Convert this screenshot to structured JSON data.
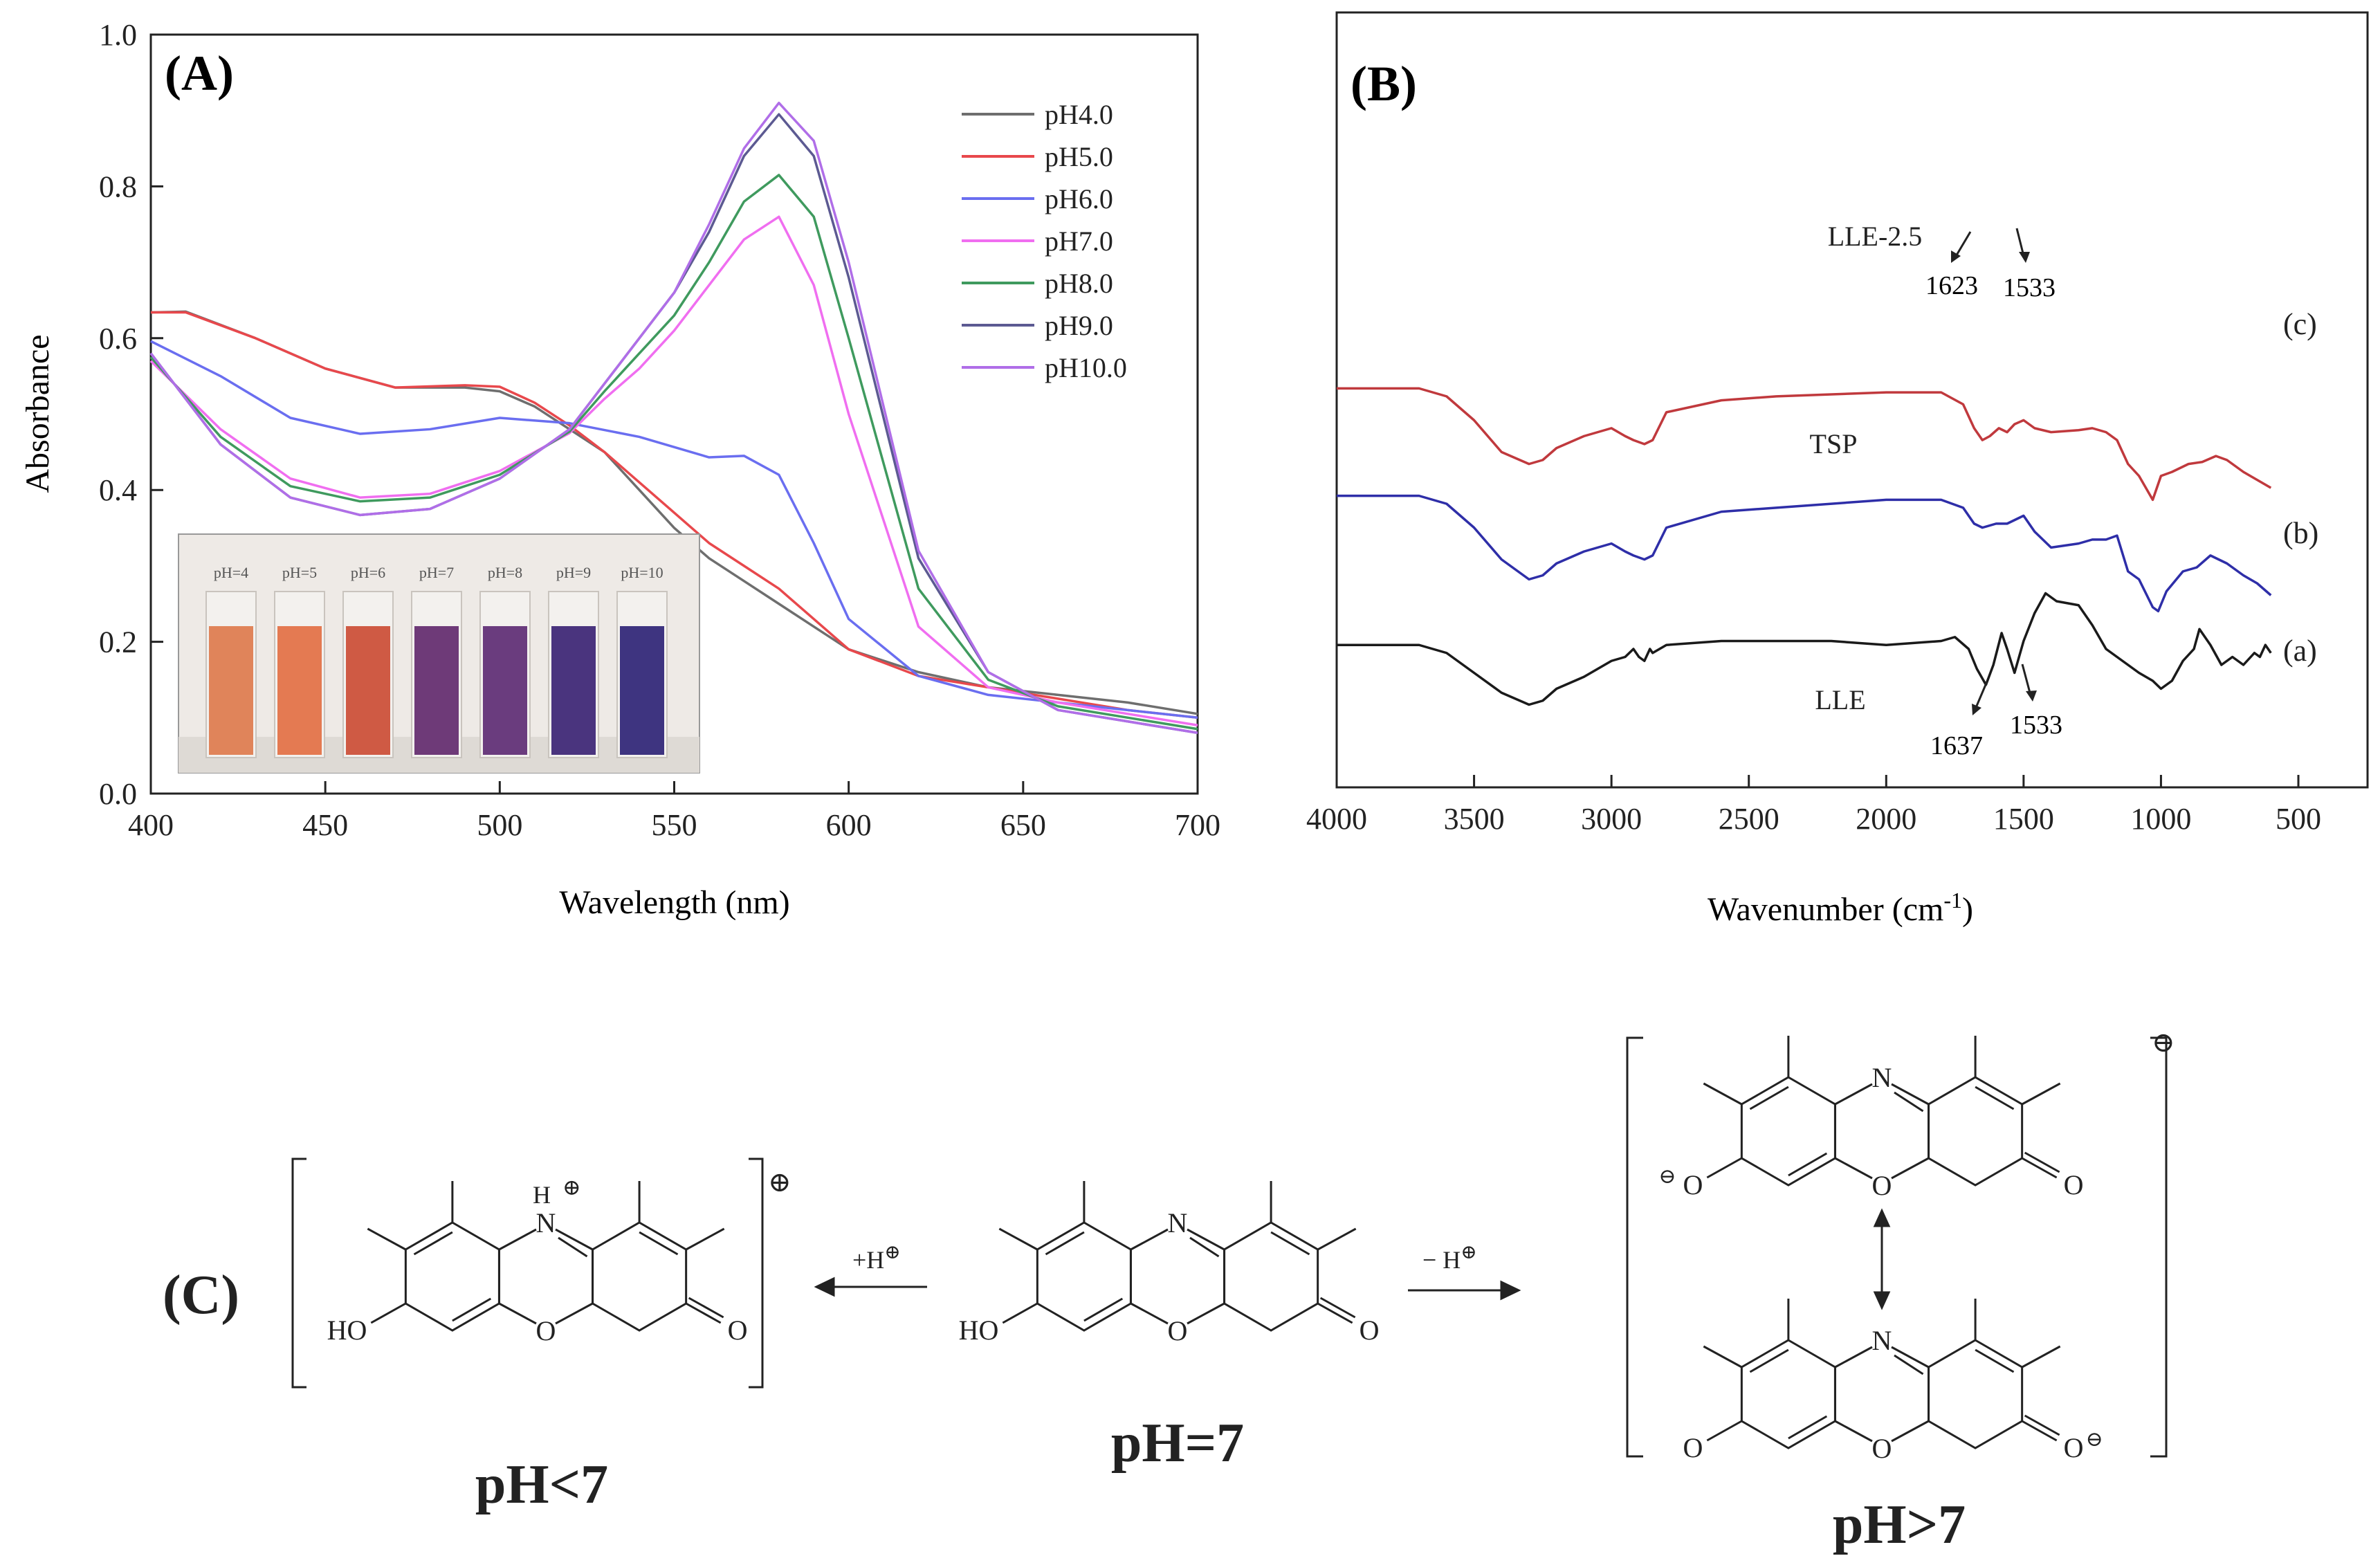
{
  "panels": {
    "A": {
      "label": "(A)"
    },
    "B": {
      "label": "(B)"
    },
    "C": {
      "label": "(C)"
    }
  },
  "chart_data": [
    {
      "id": "A",
      "type": "line",
      "xlabel": "Wavelength (nm)",
      "ylabel": "Absorbance",
      "xlim": [
        400,
        700
      ],
      "ylim": [
        0.0,
        1.0
      ],
      "xticks": [
        400,
        450,
        500,
        550,
        600,
        650,
        700
      ],
      "yticks": [
        0.0,
        0.2,
        0.4,
        0.6,
        0.8,
        1.0
      ],
      "ytick_labels": [
        "0.0",
        "0.2",
        "0.4",
        "0.6",
        "0.8",
        "1.0"
      ],
      "grid": false,
      "legend": "top-right",
      "series": [
        {
          "name": "pH4.0",
          "color": "#6e6e6e",
          "x": [
            400,
            410,
            430,
            450,
            470,
            490,
            500,
            510,
            520,
            530,
            540,
            550,
            560,
            570,
            580,
            590,
            600,
            620,
            640,
            660,
            680,
            700
          ],
          "y": [
            0.634,
            0.635,
            0.6,
            0.56,
            0.535,
            0.535,
            0.53,
            0.51,
            0.48,
            0.45,
            0.4,
            0.35,
            0.31,
            0.28,
            0.25,
            0.22,
            0.19,
            0.16,
            0.14,
            0.13,
            0.12,
            0.105
          ]
        },
        {
          "name": "pH5.0",
          "color": "#e8484c",
          "x": [
            400,
            410,
            430,
            450,
            470,
            490,
            500,
            510,
            520,
            530,
            540,
            550,
            560,
            570,
            580,
            590,
            600,
            620,
            640,
            660,
            680,
            700
          ],
          "y": [
            0.634,
            0.634,
            0.6,
            0.56,
            0.535,
            0.538,
            0.536,
            0.515,
            0.485,
            0.45,
            0.41,
            0.37,
            0.33,
            0.3,
            0.27,
            0.23,
            0.19,
            0.155,
            0.14,
            0.125,
            0.11,
            0.1
          ]
        },
        {
          "name": "pH6.0",
          "color": "#6a6ef0",
          "x": [
            400,
            420,
            440,
            460,
            480,
            500,
            520,
            540,
            560,
            570,
            580,
            590,
            600,
            620,
            640,
            660,
            680,
            700
          ],
          "y": [
            0.596,
            0.55,
            0.495,
            0.474,
            0.48,
            0.495,
            0.488,
            0.47,
            0.443,
            0.445,
            0.42,
            0.33,
            0.23,
            0.155,
            0.13,
            0.12,
            0.11,
            0.1
          ]
        },
        {
          "name": "pH7.0",
          "color": "#f06ef0",
          "x": [
            400,
            420,
            440,
            460,
            480,
            500,
            520,
            530,
            540,
            550,
            560,
            570,
            580,
            590,
            600,
            620,
            640,
            660,
            680,
            700
          ],
          "y": [
            0.57,
            0.48,
            0.415,
            0.39,
            0.395,
            0.425,
            0.475,
            0.52,
            0.56,
            0.61,
            0.67,
            0.73,
            0.76,
            0.67,
            0.5,
            0.22,
            0.14,
            0.12,
            0.105,
            0.09
          ]
        },
        {
          "name": "pH8.0",
          "color": "#3f9a5e",
          "x": [
            400,
            420,
            440,
            460,
            480,
            500,
            520,
            530,
            540,
            550,
            560,
            570,
            580,
            590,
            600,
            620,
            640,
            660,
            680,
            700
          ],
          "y": [
            0.575,
            0.47,
            0.405,
            0.385,
            0.39,
            0.42,
            0.477,
            0.53,
            0.58,
            0.63,
            0.7,
            0.78,
            0.815,
            0.76,
            0.6,
            0.27,
            0.15,
            0.115,
            0.1,
            0.085
          ]
        },
        {
          "name": "pH9.0",
          "color": "#5c5a92",
          "x": [
            400,
            420,
            440,
            460,
            480,
            500,
            520,
            530,
            540,
            550,
            560,
            570,
            580,
            590,
            600,
            620,
            640,
            660,
            680,
            700
          ],
          "y": [
            0.58,
            0.46,
            0.39,
            0.367,
            0.375,
            0.415,
            0.48,
            0.54,
            0.6,
            0.66,
            0.74,
            0.84,
            0.895,
            0.84,
            0.68,
            0.31,
            0.16,
            0.11,
            0.095,
            0.08
          ]
        },
        {
          "name": "pH10.0",
          "color": "#b06ee8",
          "x": [
            400,
            420,
            440,
            460,
            480,
            500,
            520,
            530,
            540,
            550,
            560,
            570,
            580,
            590,
            600,
            620,
            640,
            660,
            680,
            700
          ],
          "y": [
            0.58,
            0.46,
            0.39,
            0.367,
            0.375,
            0.415,
            0.48,
            0.54,
            0.6,
            0.66,
            0.75,
            0.85,
            0.91,
            0.86,
            0.7,
            0.32,
            0.16,
            0.11,
            0.095,
            0.08
          ]
        }
      ],
      "inset": {
        "labels": [
          "pH=4",
          "pH=5",
          "pH=6",
          "pH=7",
          "pH=8",
          "pH=9",
          "pH=10"
        ],
        "colors": [
          "#e0845a",
          "#e47a52",
          "#cf5a44",
          "#6e3a78",
          "#6a3c7e",
          "#4a347e",
          "#3e3480"
        ]
      }
    },
    {
      "id": "B",
      "type": "line",
      "xlabel": "Wavenumber (cm",
      "xlabel_sup": "-1",
      "xlabel_end": ")",
      "xlim": [
        4000,
        500
      ],
      "xticks": [
        4000,
        3500,
        3000,
        2500,
        2000,
        1500,
        1000,
        500
      ],
      "grid": false,
      "series": [
        {
          "name": "LLE-2.5",
          "tag": "(c)",
          "color": "#c0393d",
          "offset": 0.625,
          "x": [
            4000,
            3700,
            3600,
            3500,
            3400,
            3300,
            3250,
            3200,
            3100,
            3000,
            2950,
            2920,
            2880,
            2850,
            2800,
            2600,
            2400,
            2000,
            1800,
            1720,
            1680,
            1650,
            1623,
            1590,
            1560,
            1533,
            1500,
            1460,
            1400,
            1300,
            1250,
            1200,
            1160,
            1120,
            1080,
            1030,
            1000,
            960,
            900,
            850,
            800,
            760,
            700,
            650,
            600
          ],
          "y": [
            0.19,
            0.19,
            0.17,
            0.11,
            0.03,
            0.0,
            0.01,
            0.04,
            0.07,
            0.09,
            0.07,
            0.06,
            0.05,
            0.06,
            0.13,
            0.16,
            0.17,
            0.18,
            0.18,
            0.15,
            0.09,
            0.06,
            0.07,
            0.09,
            0.08,
            0.1,
            0.11,
            0.09,
            0.08,
            0.085,
            0.09,
            0.08,
            0.06,
            0.0,
            -0.03,
            -0.09,
            -0.03,
            -0.02,
            0.0,
            0.005,
            0.02,
            0.01,
            -0.02,
            -0.04,
            -0.06
          ]
        },
        {
          "name": "TSP",
          "tag": "(b)",
          "color": "#2e2ea8",
          "offset": 0.335,
          "x": [
            4000,
            3700,
            3600,
            3500,
            3400,
            3300,
            3250,
            3200,
            3100,
            3000,
            2950,
            2920,
            2880,
            2850,
            2800,
            2600,
            2400,
            2000,
            1800,
            1720,
            1680,
            1650,
            1600,
            1560,
            1500,
            1460,
            1400,
            1300,
            1250,
            1200,
            1160,
            1120,
            1080,
            1030,
            1010,
            980,
            920,
            870,
            820,
            760,
            700,
            650,
            600
          ],
          "y": [
            0.21,
            0.21,
            0.19,
            0.13,
            0.05,
            0.0,
            0.01,
            0.04,
            0.07,
            0.09,
            0.07,
            0.06,
            0.05,
            0.06,
            0.13,
            0.17,
            0.18,
            0.2,
            0.2,
            0.18,
            0.14,
            0.13,
            0.14,
            0.14,
            0.16,
            0.12,
            0.08,
            0.09,
            0.1,
            0.1,
            0.11,
            0.02,
            0.0,
            -0.07,
            -0.08,
            -0.03,
            0.02,
            0.03,
            0.06,
            0.04,
            0.01,
            -0.01,
            -0.04
          ]
        },
        {
          "name": "LLE",
          "tag": "(a)",
          "color": "#1a1a1a",
          "offset": 0.0,
          "x": [
            4000,
            3700,
            3600,
            3500,
            3400,
            3300,
            3250,
            3200,
            3100,
            3000,
            2950,
            2920,
            2900,
            2880,
            2860,
            2850,
            2800,
            2600,
            2400,
            2200,
            2000,
            1800,
            1750,
            1700,
            1670,
            1637,
            1610,
            1580,
            1560,
            1533,
            1500,
            1460,
            1420,
            1380,
            1300,
            1250,
            1200,
            1160,
            1120,
            1080,
            1030,
            1000,
            960,
            920,
            880,
            860,
            820,
            780,
            740,
            700,
            660,
            640,
            620,
            600
          ],
          "y": [
            0.17,
            0.17,
            0.15,
            0.1,
            0.05,
            0.02,
            0.03,
            0.06,
            0.09,
            0.13,
            0.14,
            0.16,
            0.14,
            0.13,
            0.16,
            0.15,
            0.17,
            0.18,
            0.18,
            0.18,
            0.17,
            0.18,
            0.19,
            0.16,
            0.11,
            0.07,
            0.12,
            0.2,
            0.16,
            0.1,
            0.18,
            0.25,
            0.3,
            0.28,
            0.27,
            0.22,
            0.16,
            0.14,
            0.12,
            0.1,
            0.08,
            0.06,
            0.08,
            0.13,
            0.16,
            0.21,
            0.17,
            0.12,
            0.14,
            0.12,
            0.15,
            0.14,
            0.17,
            0.15
          ]
        }
      ],
      "annotations": [
        "1623",
        "1533",
        "1637",
        "1533"
      ]
    }
  ],
  "scheme": {
    "left_state": "pH<7",
    "middle_state": "pH=7",
    "right_state": "pH>7",
    "arrow_left_label": "+H",
    "arrow_right_label": "− H",
    "oplus": "⊕",
    "ominus": "⊖",
    "atoms": {
      "N": "N",
      "NH": "H",
      "O": "O",
      "HO": "HO",
      "OH_end": "O"
    }
  }
}
